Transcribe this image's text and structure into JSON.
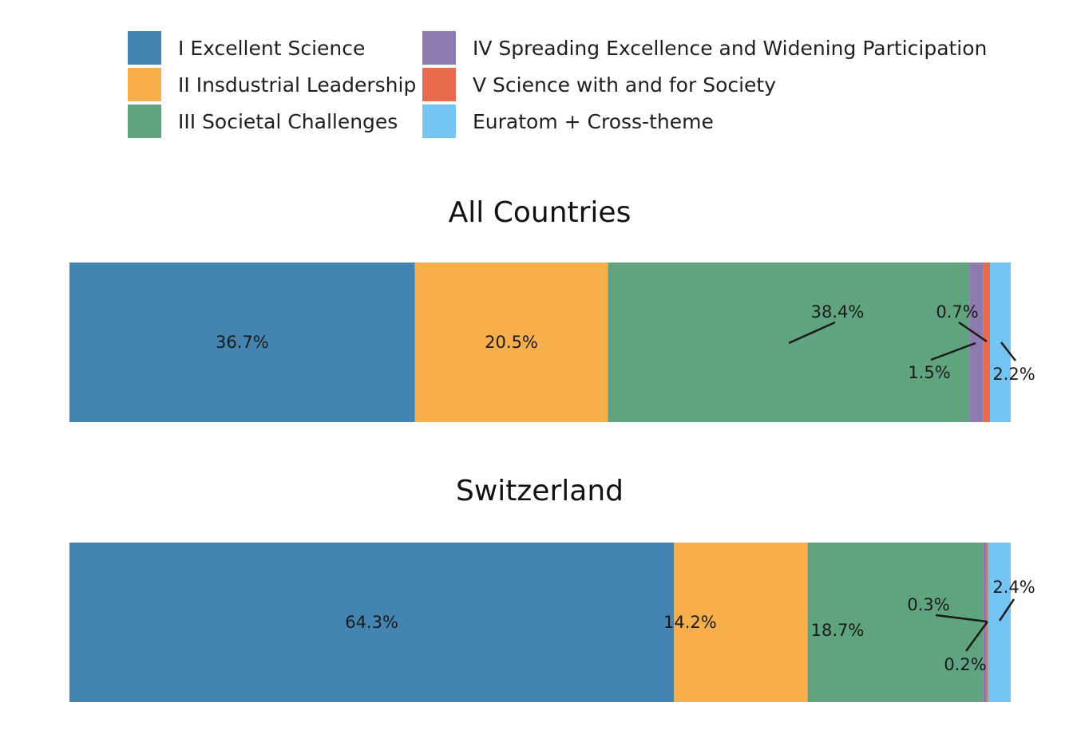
{
  "chart_data": {
    "type": "bar",
    "orientation": "horizontal-stacked-100",
    "legend": {
      "placement": "top",
      "entries": [
        {
          "label": "I Excellent Science",
          "color": "#4484B0"
        },
        {
          "label": "II Insdustrial Leadership",
          "color": "#F7AF4B"
        },
        {
          "label": "III Societal Challenges",
          "color": "#5FA47E"
        },
        {
          "label": "IV Spreading Excellence and Widening Participation",
          "color": "#8B7BAE"
        },
        {
          "label": "V Science with and for Society",
          "color": "#EA6A50"
        },
        {
          "label": "Euratom + Cross-theme",
          "color": "#74C5F3"
        }
      ]
    },
    "panels": [
      {
        "title": "All Countries",
        "values": [
          36.7,
          20.5,
          38.4,
          1.5,
          0.7,
          2.2
        ],
        "labels": [
          "36.7%",
          "20.5%",
          "38.4%",
          "1.5%",
          "0.7%",
          "2.2%"
        ]
      },
      {
        "title": "Switzerland",
        "values": [
          64.3,
          14.2,
          18.7,
          0.3,
          0.2,
          2.4
        ],
        "labels": [
          "64.3%",
          "14.2%",
          "18.7%",
          "0.3%",
          "0.2%",
          "2.4%"
        ]
      }
    ],
    "xlim": [
      0,
      100
    ],
    "grid": false
  }
}
